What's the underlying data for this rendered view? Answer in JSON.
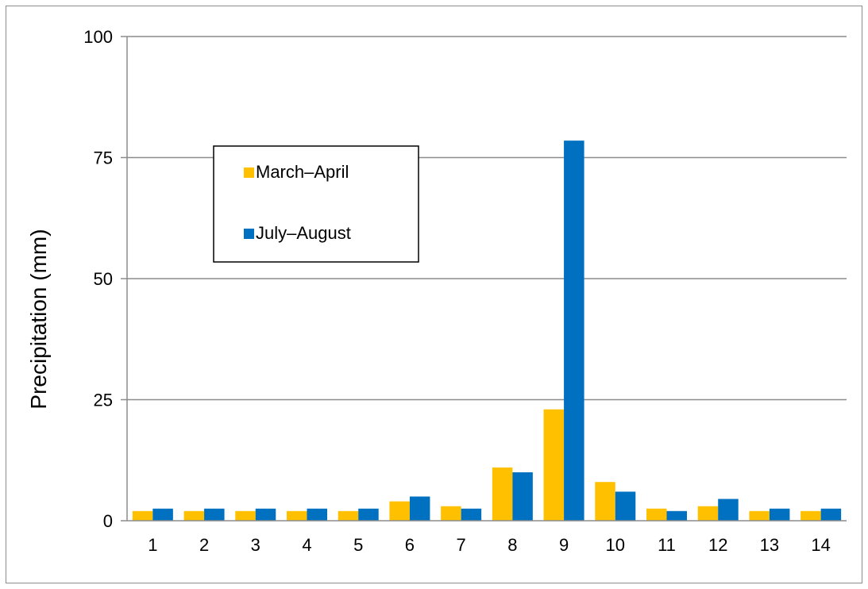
{
  "chart_data": {
    "type": "bar",
    "title": "",
    "xlabel": "",
    "ylabel": "Precipitation (mm)",
    "ylim": [
      0,
      100
    ],
    "yticks": [
      0,
      25,
      50,
      75,
      100
    ],
    "grid": true,
    "legend_position": "upper-left",
    "categories": [
      "1",
      "2",
      "3",
      "4",
      "5",
      "6",
      "7",
      "8",
      "9",
      "10",
      "11",
      "12",
      "13",
      "14"
    ],
    "series": [
      {
        "name": "March–April",
        "color": "#FFC000",
        "values": [
          2,
          2,
          2,
          2,
          2,
          4,
          3,
          11,
          23,
          8,
          2.5,
          3,
          2,
          2
        ]
      },
      {
        "name": "July–August",
        "color": "#0070C0",
        "values": [
          2.5,
          2.5,
          2.5,
          2.5,
          2.5,
          5,
          2.5,
          10,
          78.5,
          6,
          2,
          4.5,
          2.5,
          2.5
        ]
      }
    ]
  }
}
